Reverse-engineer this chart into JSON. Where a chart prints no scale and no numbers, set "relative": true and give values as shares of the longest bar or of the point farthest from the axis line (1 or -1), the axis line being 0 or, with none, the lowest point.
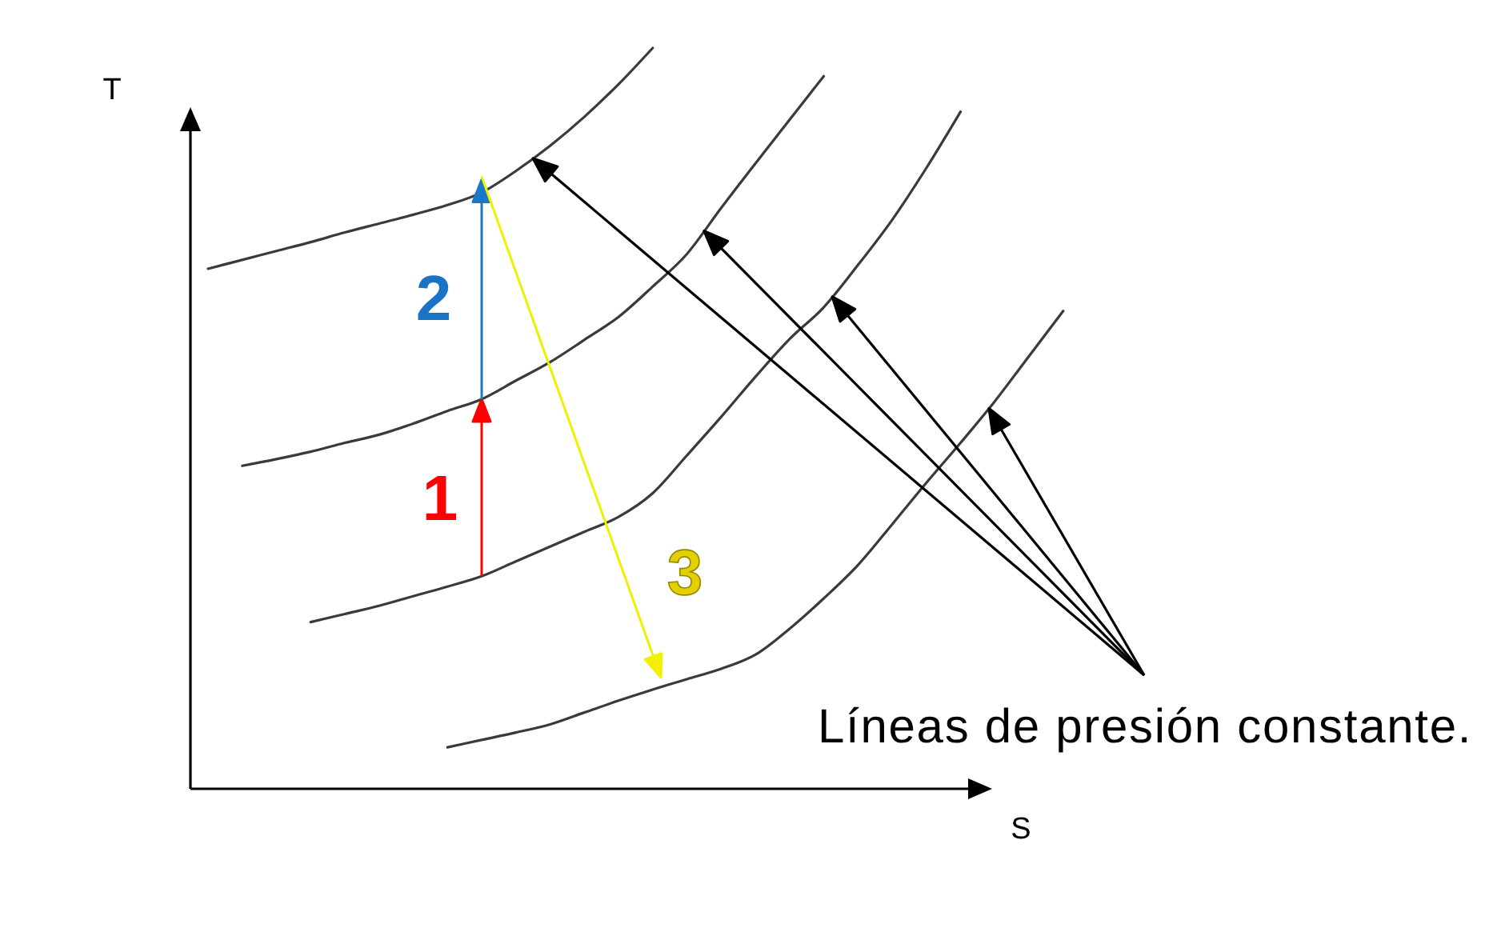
{
  "chart_data": {
    "type": "line",
    "xlabel": "S",
    "ylabel": "T",
    "relative": true,
    "categories": [
      null,
      null,
      null,
      null,
      null,
      null,
      null,
      null,
      null,
      null,
      null,
      null,
      null,
      null,
      null,
      null,
      null,
      null,
      null,
      null,
      null,
      null,
      null,
      null,
      null,
      null
    ],
    "series": [
      {
        "color": "#3a3a3a",
        "values": [
          0.702,
          0.714,
          0.726,
          0.738,
          0.751,
          0.763,
          0.775,
          0.788,
          0.805,
          0.834,
          0.868,
          0.907,
          0.951,
          1.0,
          null,
          null,
          null,
          null,
          null,
          null,
          null,
          null,
          null,
          null,
          null,
          null
        ]
      },
      {
        "color": "#3a3a3a",
        "values": [
          null,
          0.436,
          0.445,
          0.455,
          0.467,
          0.478,
          0.493,
          0.51,
          0.526,
          0.551,
          0.576,
          0.606,
          0.637,
          0.678,
          0.722,
          0.784,
          0.844,
          0.903,
          0.962,
          null,
          null,
          null,
          null,
          null,
          null,
          null
        ]
      },
      {
        "color": "#3a3a3a",
        "values": [
          null,
          null,
          null,
          0.225,
          0.236,
          0.247,
          0.26,
          0.273,
          0.287,
          0.307,
          0.327,
          0.347,
          0.367,
          0.399,
          0.45,
          0.502,
          0.556,
          0.607,
          0.65,
          0.707,
          0.768,
          0.838,
          0.914,
          null,
          null,
          null
        ]
      },
      {
        "color": "#3a3a3a",
        "values": [
          null,
          null,
          null,
          null,
          null,
          null,
          null,
          0.056,
          0.066,
          0.076,
          0.087,
          0.103,
          0.119,
          0.134,
          0.148,
          0.162,
          0.181,
          0.216,
          0.257,
          0.302,
          0.357,
          0.413,
          0.467,
          0.523,
          0.584,
          0.645
        ]
      }
    ],
    "annotations": [
      "1",
      "2",
      "3",
      "Líneas de presión constante."
    ]
  }
}
